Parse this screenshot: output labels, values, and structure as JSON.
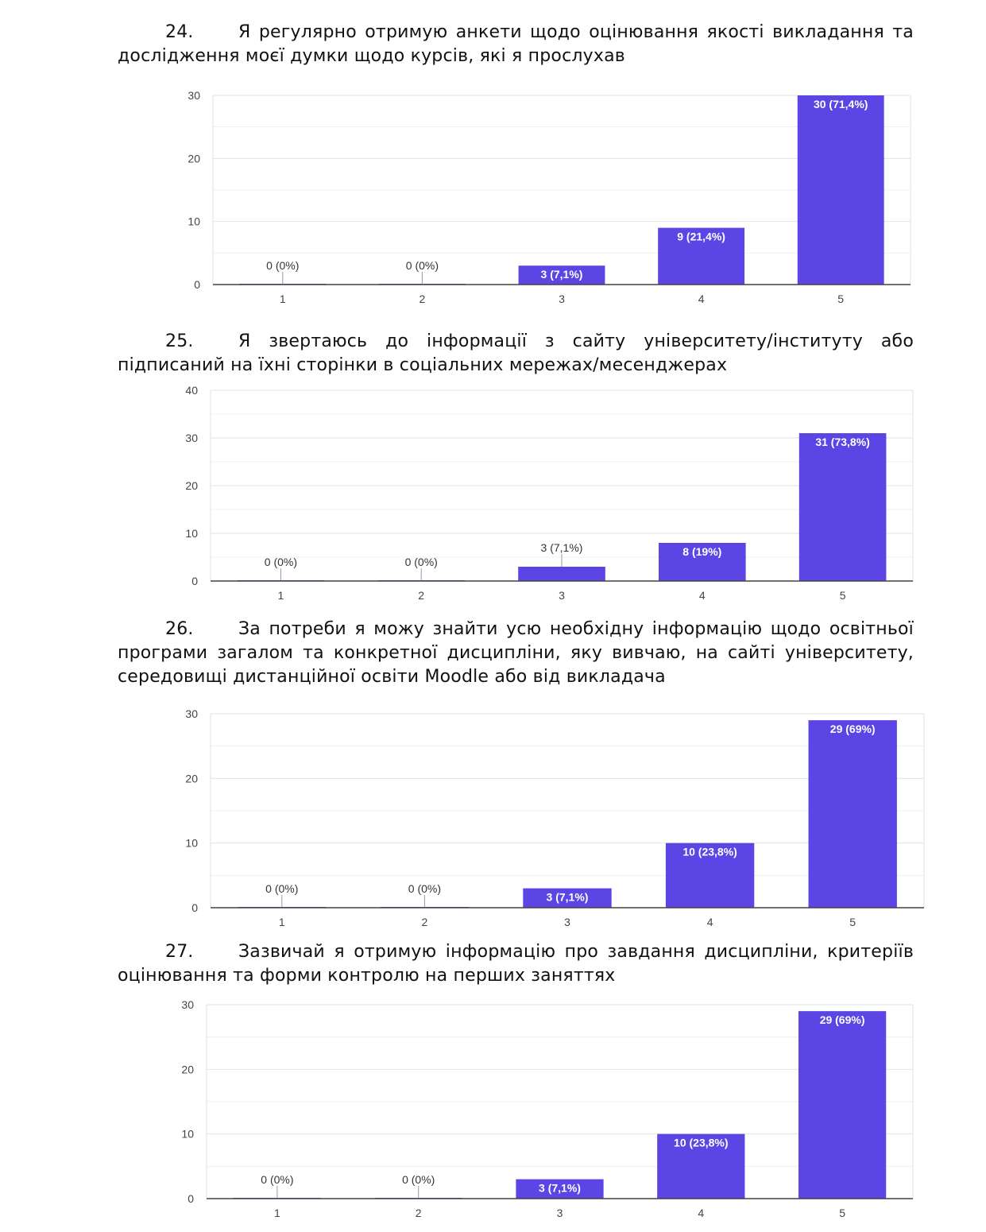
{
  "colors": {
    "bar": "#5b45e4",
    "grid": "#e3e3e3",
    "axis": "#444444"
  },
  "questions": [
    {
      "number": "24.",
      "text": "Я регулярно отримую анкети щодо оцінювання якості викладання та дослідження моєї думки щодо курсів, які я прослухав"
    },
    {
      "number": "25.",
      "text": "Я звертаюсь до інформації з сайту університету/інституту або підписаний на їхні сторінки в соціальних мережах/месенджерах"
    },
    {
      "number": "26.",
      "text": "За потреби я можу знайти усю необхідну інформацію щодо освітньої програми загалом та конкретної дисципліни, яку вивчаю, на сайті університету, середовищі дистанційної освіти Moodle або від викладача"
    },
    {
      "number": "27.",
      "text": "Зазвичай я отримую інформацію про завдання дисципліни, критеріїв оцінювання та форми контролю на перших заняттях"
    }
  ],
  "chart_data": [
    {
      "type": "bar",
      "categories": [
        "1",
        "2",
        "3",
        "4",
        "5"
      ],
      "values": [
        0,
        0,
        3,
        9,
        30
      ],
      "data_labels": [
        "0 (0%)",
        "0 (0%)",
        "3 (7,1%)",
        "9 (21,4%)",
        "30 (71,4%)"
      ],
      "yticks": [
        0,
        10,
        20,
        30
      ],
      "ylim": [
        0,
        30
      ],
      "grid": true
    },
    {
      "type": "bar",
      "categories": [
        "1",
        "2",
        "3",
        "4",
        "5"
      ],
      "values": [
        0,
        0,
        3,
        8,
        31
      ],
      "data_labels": [
        "0 (0%)",
        "0 (0%)",
        "3 (7,1%)",
        "8 (19%)",
        "31 (73,8%)"
      ],
      "yticks": [
        0,
        10,
        20,
        30,
        40
      ],
      "ylim": [
        0,
        40
      ],
      "grid": true
    },
    {
      "type": "bar",
      "categories": [
        "1",
        "2",
        "3",
        "4",
        "5"
      ],
      "values": [
        0,
        0,
        3,
        10,
        29
      ],
      "data_labels": [
        "0 (0%)",
        "0 (0%)",
        "3 (7,1%)",
        "10 (23,8%)",
        "29 (69%)"
      ],
      "yticks": [
        0,
        10,
        20,
        30
      ],
      "ylim": [
        0,
        30
      ],
      "grid": true
    },
    {
      "type": "bar",
      "categories": [
        "1",
        "2",
        "3",
        "4",
        "5"
      ],
      "values": [
        0,
        0,
        3,
        10,
        29
      ],
      "data_labels": [
        "0 (0%)",
        "0 (0%)",
        "3 (7,1%)",
        "10 (23,8%)",
        "29 (69%)"
      ],
      "yticks": [
        0,
        10,
        20,
        30
      ],
      "ylim": [
        0,
        30
      ],
      "grid": true
    }
  ]
}
